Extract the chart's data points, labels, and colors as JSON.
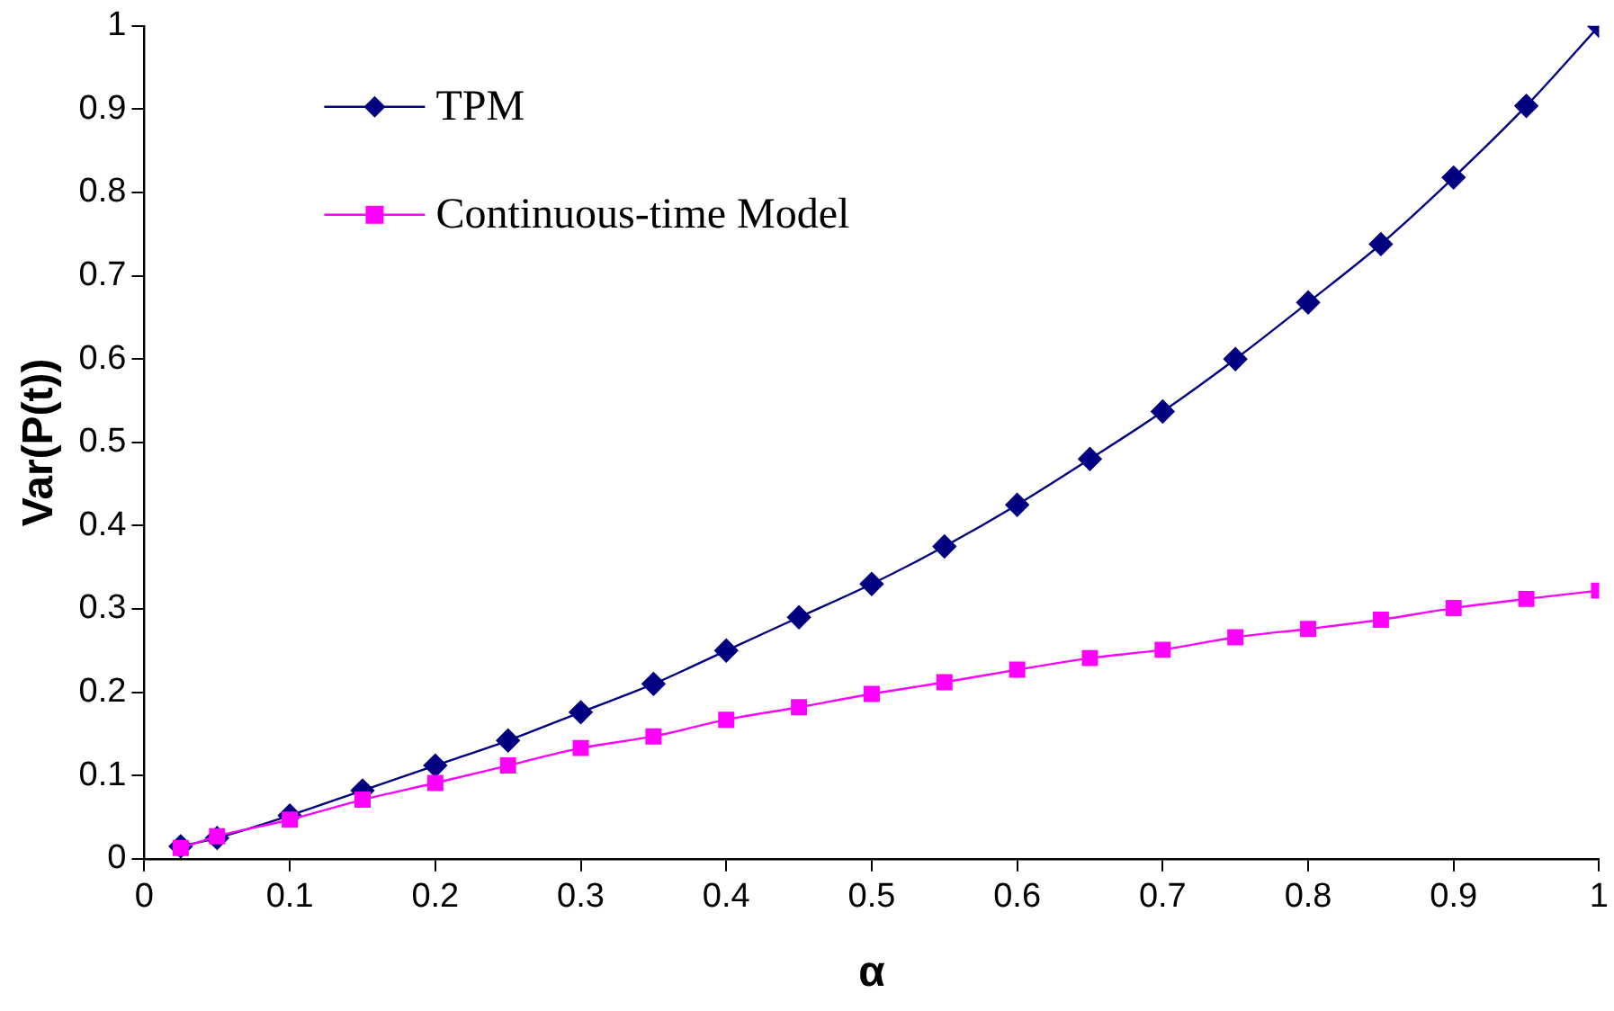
{
  "chart_data": {
    "type": "line",
    "xlabel": "α",
    "ylabel": "Var(P(t))",
    "x": [
      0.025,
      0.05,
      0.1,
      0.15,
      0.2,
      0.25,
      0.3,
      0.35,
      0.4,
      0.45,
      0.5,
      0.55,
      0.6,
      0.65,
      0.7,
      0.75,
      0.8,
      0.85,
      0.9,
      0.95,
      1.0
    ],
    "series": [
      {
        "name": "TPM",
        "color": "#000080",
        "marker": "diamond",
        "values": [
          0.015,
          0.025,
          0.052,
          0.082,
          0.112,
          0.142,
          0.176,
          0.21,
          0.25,
          0.29,
          0.33,
          0.375,
          0.425,
          0.48,
          0.537,
          0.6,
          0.668,
          0.738,
          0.818,
          0.904,
          1.0
        ]
      },
      {
        "name": "Continuous-time Model",
        "color": "#ff00ff",
        "marker": "square",
        "values": [
          0.013,
          0.027,
          0.047,
          0.071,
          0.091,
          0.112,
          0.133,
          0.147,
          0.167,
          0.182,
          0.198,
          0.212,
          0.227,
          0.241,
          0.251,
          0.266,
          0.276,
          0.287,
          0.301,
          0.312,
          0.322
        ]
      }
    ],
    "xlim": [
      0,
      1
    ],
    "xticks": [
      0,
      0.1,
      0.2,
      0.3,
      0.4,
      0.5,
      0.6,
      0.7,
      0.8,
      0.9,
      1
    ],
    "ylim": [
      0,
      1
    ],
    "yticks": [
      0,
      0.1,
      0.2,
      0.3,
      0.4,
      0.5,
      0.6,
      0.7,
      0.8,
      0.9,
      1
    ],
    "grid": false,
    "legend": "top left"
  }
}
